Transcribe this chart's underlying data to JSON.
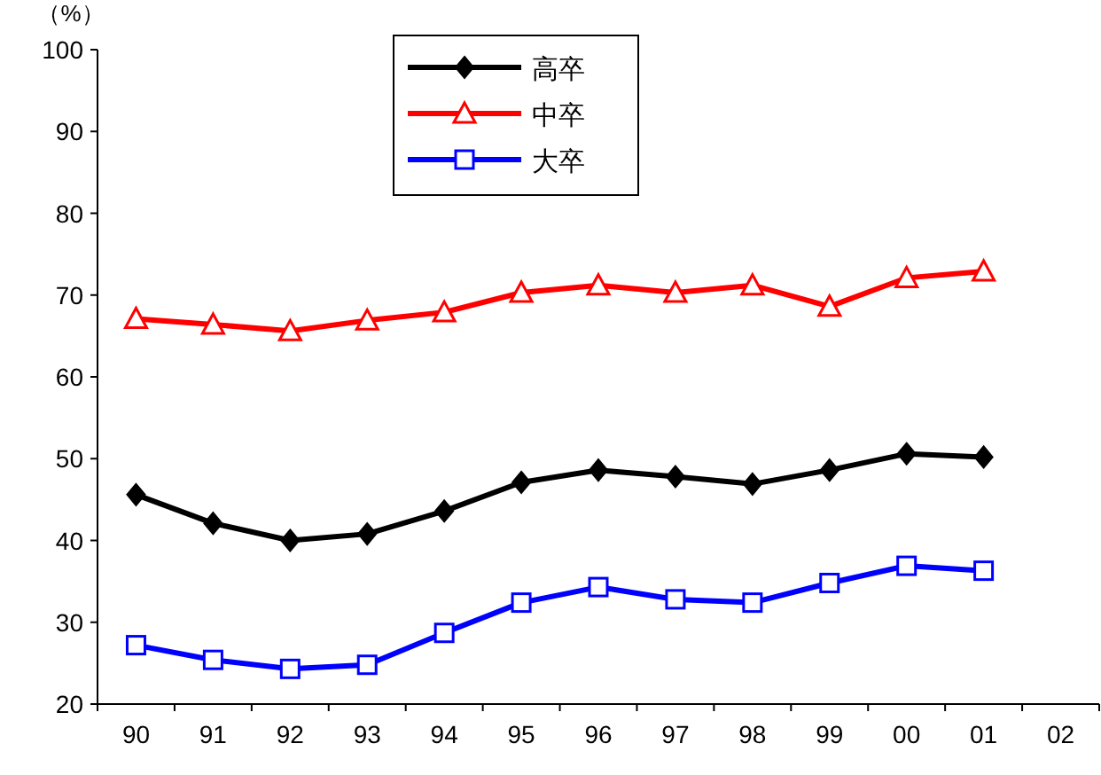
{
  "chart_data": {
    "type": "line",
    "ylabel": "（%）",
    "categories": [
      "90",
      "91",
      "92",
      "93",
      "94",
      "95",
      "96",
      "97",
      "98",
      "99",
      "00",
      "01",
      "02"
    ],
    "ylim": [
      20,
      100
    ],
    "yticks": [
      20,
      30,
      40,
      50,
      60,
      70,
      80,
      90,
      100
    ],
    "grid": false,
    "legend": "top",
    "series": [
      {
        "name": "高卒",
        "color": "#000000",
        "marker": "diamond",
        "values": [
          45.6,
          42.1,
          40.0,
          40.8,
          43.6,
          47.1,
          48.6,
          47.8,
          46.9,
          48.6,
          50.6,
          50.2,
          null
        ]
      },
      {
        "name": "中卒",
        "color": "#ff0000",
        "marker": "triangle",
        "values": [
          67.1,
          66.4,
          65.6,
          66.9,
          67.9,
          70.3,
          71.2,
          70.3,
          71.2,
          68.6,
          72.1,
          72.9,
          null
        ]
      },
      {
        "name": "大卒",
        "color": "#0000ff",
        "marker": "square",
        "values": [
          27.2,
          25.4,
          24.3,
          24.8,
          28.7,
          32.4,
          34.3,
          32.8,
          32.4,
          34.8,
          36.9,
          36.3,
          null
        ]
      }
    ]
  }
}
